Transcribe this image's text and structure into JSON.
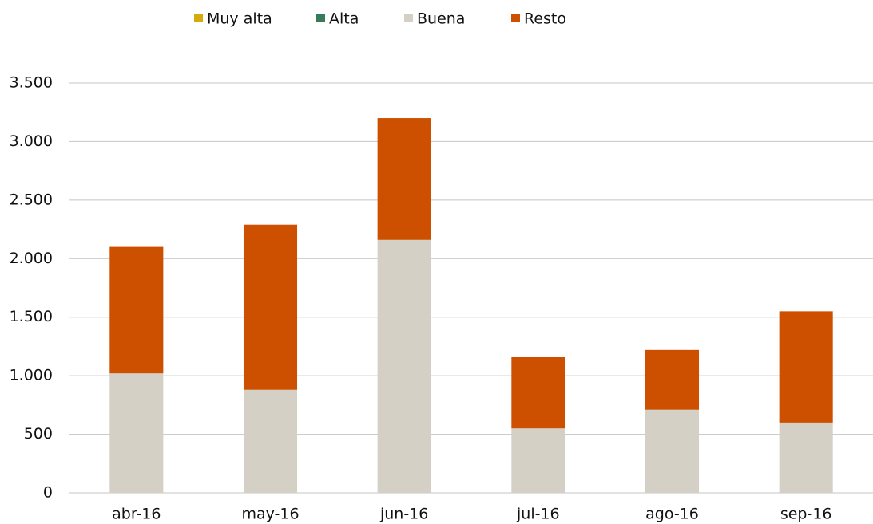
{
  "chart_data": {
    "type": "stacked_bar",
    "categories": [
      "abr-16",
      "may-16",
      "jun-16",
      "jul-16",
      "ago-16",
      "sep-16"
    ],
    "series": [
      {
        "name": "Muy alta",
        "color": "#d4aa0c",
        "values": [
          0,
          0,
          0,
          0,
          0,
          0
        ]
      },
      {
        "name": "Alta",
        "color": "#3a7a5c",
        "values": [
          0,
          0,
          0,
          0,
          0,
          0
        ]
      },
      {
        "name": "Buena",
        "color": "#d5d0c6",
        "values": [
          1020,
          880,
          2160,
          550,
          710,
          600
        ]
      },
      {
        "name": "Resto",
        "color": "#cc5000",
        "values": [
          1080,
          1410,
          1040,
          610,
          510,
          950
        ]
      }
    ],
    "ylim": [
      0,
      3500
    ],
    "yticks": [
      0,
      500,
      {
        "value": 1000,
        "label": "1.000"
      },
      {
        "value": 1500,
        "label": "1.500"
      },
      {
        "value": 2000,
        "label": "2.000"
      },
      {
        "value": 2500,
        "label": "2.500"
      },
      {
        "value": 3000,
        "label": "3.000"
      },
      {
        "value": 3500,
        "label": "3.500"
      }
    ],
    "grid": true,
    "legend": "top"
  }
}
